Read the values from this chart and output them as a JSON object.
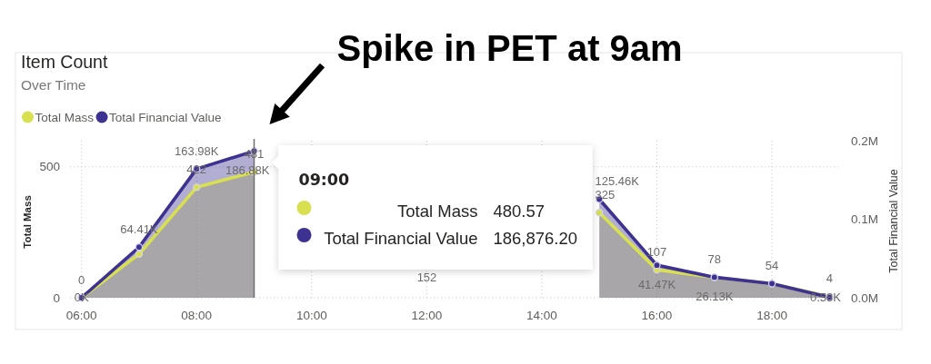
{
  "chart_data": {
    "type": "area",
    "title": "Item Count",
    "subtitle": "Over Time",
    "ylabel": "Total Mass",
    "y2label": "Total Financial Value",
    "x": [
      6,
      7,
      8,
      9,
      10,
      11,
      12,
      13,
      14,
      15,
      16,
      17,
      18,
      19
    ],
    "xlim": [
      5.8,
      19.2
    ],
    "xticks": [
      {
        "value": 6,
        "label": "06:00"
      },
      {
        "value": 8,
        "label": "08:00"
      },
      {
        "value": 10,
        "label": "10:00"
      },
      {
        "value": 12,
        "label": "12:00"
      },
      {
        "value": 14,
        "label": "14:00"
      },
      {
        "value": 16,
        "label": "16:00"
      },
      {
        "value": 18,
        "label": "18:00"
      }
    ],
    "ylim": [
      0,
      600
    ],
    "yticks": [
      0,
      500
    ],
    "y2lim": [
      0,
      200000
    ],
    "y2ticks": [
      {
        "value": 0,
        "label": "0.0M"
      },
      {
        "value": 100000,
        "label": "0.1M"
      },
      {
        "value": 200000,
        "label": "0.2M"
      }
    ],
    "series": [
      {
        "name": "Total Mass",
        "color": "#d9e04f",
        "values": [
          0,
          167,
          422,
          480.57,
          null,
          null,
          null,
          null,
          null,
          325,
          107,
          78,
          54,
          4
        ],
        "value_labels": [
          "0",
          null,
          "422",
          "481",
          null,
          null,
          null,
          null,
          null,
          "325",
          "107",
          "78",
          "54",
          "4"
        ]
      },
      {
        "name": "Total Financial Value",
        "color": "#3d3291",
        "axis": "y2",
        "values": [
          0,
          64410,
          163980,
          186876.2,
          null,
          null,
          null,
          null,
          null,
          125460,
          41470,
          26130,
          18000,
          580
        ],
        "value_labels": [
          "0K",
          "64.41K",
          "163.98K",
          "186.88K",
          null,
          null,
          null,
          null,
          null,
          "125.46K",
          "41.47K",
          "26.13K",
          null,
          "0.58K"
        ]
      }
    ],
    "ref_lines": [
      {
        "axis": "x",
        "value": 9,
        "color": "#6e6e6e"
      }
    ],
    "annotations": [
      "Spike in PET at 9am",
      "09:00",
      "Total Mass",
      "480.57",
      "Total Financial Value",
      "186,876.20",
      "152"
    ],
    "grid": true,
    "legend": "top left",
    "marker": "circle"
  }
}
